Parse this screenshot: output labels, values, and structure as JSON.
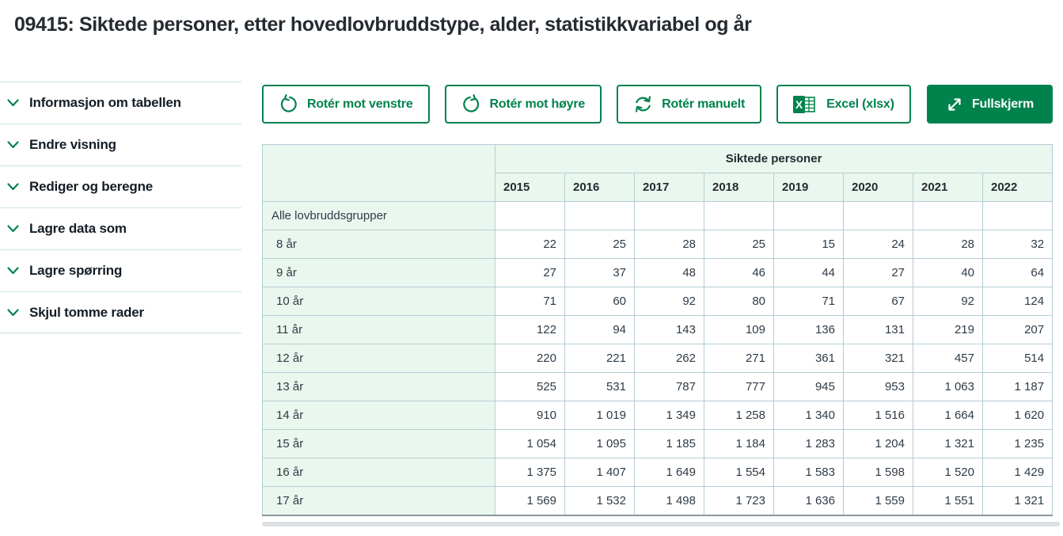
{
  "page": {
    "title": "09415: Siktede personer, etter hovedlovbruddstype, alder, statistikkvariabel og år"
  },
  "sidebar": {
    "items": [
      "Informasjon om tabellen",
      "Endre visning",
      "Rediger og beregne",
      "Lagre data som",
      "Lagre spørring",
      "Skjul tomme rader"
    ]
  },
  "toolbar": {
    "rotate_left": "Rotér mot venstre",
    "rotate_right": "Rotér mot høyre",
    "rotate_manual": "Rotér manuelt",
    "excel": "Excel (xlsx)",
    "fullscreen": "Fullskjerm"
  },
  "table": {
    "group_header": "Siktede personer",
    "years": [
      "2015",
      "2016",
      "2017",
      "2018",
      "2019",
      "2020",
      "2021",
      "2022"
    ],
    "rows": [
      {
        "label": "Alle lovbruddsgrupper",
        "indent": false,
        "values": [
          "",
          "",
          "",
          "",
          "",
          "",
          "",
          ""
        ]
      },
      {
        "label": "8 år",
        "indent": true,
        "values": [
          "22",
          "25",
          "28",
          "25",
          "15",
          "24",
          "28",
          "32"
        ]
      },
      {
        "label": "9 år",
        "indent": true,
        "values": [
          "27",
          "37",
          "48",
          "46",
          "44",
          "27",
          "40",
          "64"
        ]
      },
      {
        "label": "10 år",
        "indent": true,
        "values": [
          "71",
          "60",
          "92",
          "80",
          "71",
          "67",
          "92",
          "124"
        ]
      },
      {
        "label": "11 år",
        "indent": true,
        "values": [
          "122",
          "94",
          "143",
          "109",
          "136",
          "131",
          "219",
          "207"
        ]
      },
      {
        "label": "12 år",
        "indent": true,
        "values": [
          "220",
          "221",
          "262",
          "271",
          "361",
          "321",
          "457",
          "514"
        ]
      },
      {
        "label": "13 år",
        "indent": true,
        "values": [
          "525",
          "531",
          "787",
          "777",
          "945",
          "953",
          "1 063",
          "1 187"
        ]
      },
      {
        "label": "14 år",
        "indent": true,
        "values": [
          "910",
          "1 019",
          "1 349",
          "1 258",
          "1 340",
          "1 516",
          "1 664",
          "1 620"
        ]
      },
      {
        "label": "15 år",
        "indent": true,
        "values": [
          "1 054",
          "1 095",
          "1 185",
          "1 184",
          "1 283",
          "1 204",
          "1 321",
          "1 235"
        ]
      },
      {
        "label": "16 år",
        "indent": true,
        "values": [
          "1 375",
          "1 407",
          "1 649",
          "1 554",
          "1 583",
          "1 598",
          "1 520",
          "1 429"
        ]
      },
      {
        "label": "17 år",
        "indent": true,
        "values": [
          "1 569",
          "1 532",
          "1 498",
          "1 723",
          "1 636",
          "1 559",
          "1 551",
          "1 321"
        ]
      }
    ]
  },
  "colors": {
    "brand_green": "#00824d",
    "header_bg": "#eaf7ee",
    "table_border": "#b4cdd5"
  }
}
